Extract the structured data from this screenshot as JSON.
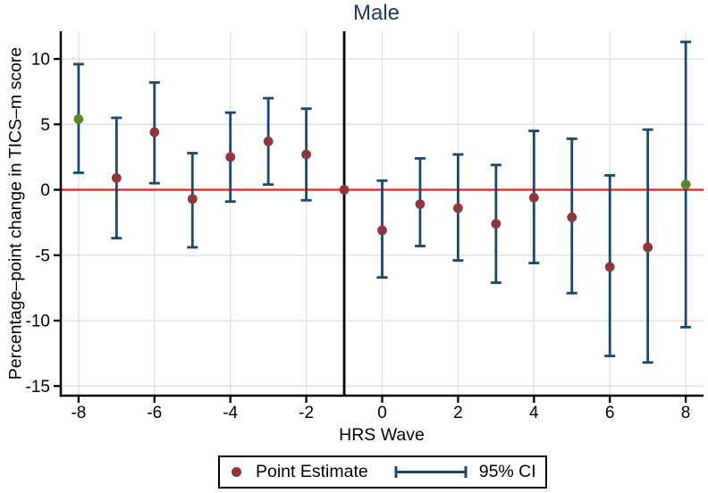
{
  "chart_data": {
    "type": "scatter",
    "subtype": "coefficient-errorbar-plot",
    "title": "Male",
    "xlabel": "HRS Wave",
    "ylabel": "Percentage–point change in TICS–m score",
    "x_ticks": [
      -8,
      -6,
      -4,
      -2,
      0,
      2,
      4,
      6,
      8
    ],
    "y_ticks": [
      10,
      5,
      0,
      -5,
      -10,
      -15
    ],
    "xlim": [
      -8.5,
      8.5
    ],
    "ylim": [
      -15.8,
      12.4
    ],
    "grid": true,
    "legend_position": "bottom-center",
    "zero_line_y": 0,
    "reference_line_x": -1,
    "legend": {
      "point_label": "Point Estimate",
      "ci_label": "95% CI"
    },
    "colors": {
      "point": "#90353b",
      "highlight_point": "#5d8527",
      "ci": "#1a476f",
      "zero_line": "#ee1c1c",
      "reference_line": "#000000",
      "title": "#1f3864",
      "grid": "#e2e2e2",
      "axis": "#000000"
    },
    "series": [
      {
        "x": -8,
        "estimate": 5.4,
        "ci_low": 1.3,
        "ci_high": 9.6,
        "highlight": true
      },
      {
        "x": -7,
        "estimate": 0.9,
        "ci_low": -3.7,
        "ci_high": 5.5,
        "highlight": false
      },
      {
        "x": -6,
        "estimate": 4.4,
        "ci_low": 0.5,
        "ci_high": 8.2,
        "highlight": false
      },
      {
        "x": -5,
        "estimate": -0.7,
        "ci_low": -4.4,
        "ci_high": 2.8,
        "highlight": false
      },
      {
        "x": -4,
        "estimate": 2.5,
        "ci_low": -0.9,
        "ci_high": 5.9,
        "highlight": false
      },
      {
        "x": -3,
        "estimate": 3.7,
        "ci_low": 0.4,
        "ci_high": 7.0,
        "highlight": false
      },
      {
        "x": -2,
        "estimate": 2.7,
        "ci_low": -0.8,
        "ci_high": 6.2,
        "highlight": false
      },
      {
        "x": -1,
        "estimate": 0.0,
        "ci_low": null,
        "ci_high": null,
        "highlight": false
      },
      {
        "x": 0,
        "estimate": -3.1,
        "ci_low": -6.7,
        "ci_high": 0.7,
        "highlight": false
      },
      {
        "x": 1,
        "estimate": -1.1,
        "ci_low": -4.3,
        "ci_high": 2.4,
        "highlight": false
      },
      {
        "x": 2,
        "estimate": -1.4,
        "ci_low": -5.4,
        "ci_high": 2.7,
        "highlight": false
      },
      {
        "x": 3,
        "estimate": -2.6,
        "ci_low": -7.1,
        "ci_high": 1.9,
        "highlight": false
      },
      {
        "x": 4,
        "estimate": -0.6,
        "ci_low": -5.6,
        "ci_high": 4.5,
        "highlight": false
      },
      {
        "x": 5,
        "estimate": -2.1,
        "ci_low": -7.9,
        "ci_high": 3.9,
        "highlight": false
      },
      {
        "x": 6,
        "estimate": -5.9,
        "ci_low": -12.7,
        "ci_high": 1.1,
        "highlight": false
      },
      {
        "x": 7,
        "estimate": -4.4,
        "ci_low": -13.2,
        "ci_high": 4.6,
        "highlight": false
      },
      {
        "x": 8,
        "estimate": 0.4,
        "ci_low": -10.5,
        "ci_high": 11.3,
        "highlight": true
      }
    ]
  }
}
